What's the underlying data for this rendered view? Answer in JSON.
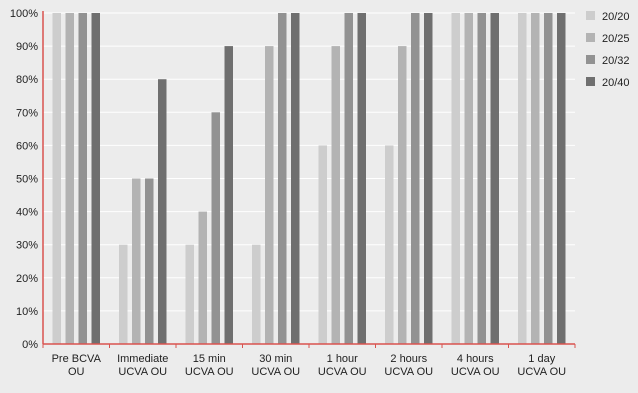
{
  "chart_data": {
    "type": "bar",
    "title": "",
    "xlabel": "",
    "ylabel": "",
    "ylim": [
      0,
      100
    ],
    "yticks": [
      "0%",
      "10%",
      "20%",
      "30%",
      "40%",
      "50%",
      "60%",
      "70%",
      "80%",
      "90%",
      "100%"
    ],
    "grid": "horizontal",
    "legend_position": "right",
    "categories": [
      [
        "Pre BCVA",
        "OU"
      ],
      [
        "Immediate",
        "UCVA OU"
      ],
      [
        "15 min",
        "UCVA OU"
      ],
      [
        "30 min",
        "UCVA OU"
      ],
      [
        "1 hour",
        "UCVA OU"
      ],
      [
        "2 hours",
        "UCVA OU"
      ],
      [
        "4 hours",
        "UCVA OU"
      ],
      [
        "1 day",
        "UCVA OU"
      ]
    ],
    "series": [
      {
        "name": "20/20",
        "color": "#cdcdcd",
        "values": [
          100,
          30,
          30,
          30,
          60,
          60,
          100,
          100
        ]
      },
      {
        "name": "20/25",
        "color": "#b3b3b3",
        "values": [
          100,
          50,
          40,
          90,
          90,
          90,
          100,
          100
        ]
      },
      {
        "name": "20/32",
        "color": "#929292",
        "values": [
          100,
          50,
          70,
          100,
          100,
          100,
          100,
          100
        ]
      },
      {
        "name": "20/40",
        "color": "#6f6f6f",
        "values": [
          100,
          80,
          90,
          100,
          100,
          100,
          100,
          100
        ]
      }
    ],
    "colors": {
      "axis": "#d9534f",
      "grid": "#ffffff",
      "background": "#ececec"
    }
  }
}
